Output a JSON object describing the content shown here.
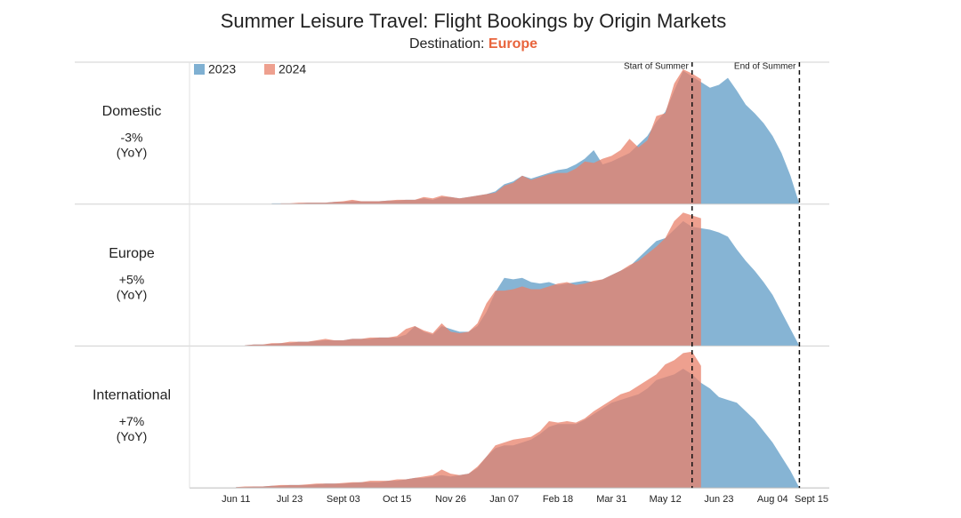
{
  "chart_data": {
    "type": "area",
    "title": "Summer Leisure Travel: Flight Bookings by Origin Markets",
    "subtitle": "Destination: ",
    "subtitle_highlight": "Europe",
    "series": [
      {
        "name": "2023",
        "color": "#7fb0d2"
      },
      {
        "name": "2024",
        "color": "#e8806a"
      }
    ],
    "annotations": [
      "Start of Summer",
      "End of Summer"
    ],
    "ylim": [
      0,
      100
    ],
    "categories": [
      null,
      null,
      null,
      null,
      null,
      "Jun 11",
      null,
      null,
      null,
      null,
      null,
      "Jul 23",
      null,
      null,
      null,
      null,
      null,
      "Sept 03",
      null,
      null,
      null,
      null,
      null,
      "Oct 15",
      null,
      null,
      null,
      null,
      null,
      "Nov 26",
      null,
      null,
      null,
      null,
      null,
      "Jan 07",
      null,
      null,
      null,
      null,
      null,
      "Feb 18",
      null,
      null,
      null,
      null,
      null,
      "Mar 31",
      null,
      null,
      null,
      null,
      null,
      "May 12",
      null,
      null,
      null,
      null,
      null,
      "Jun 23",
      null,
      null,
      null,
      null,
      null,
      "Aug 04",
      null,
      null,
      null,
      null,
      null,
      "Sept 15"
    ],
    "panels": [
      {
        "name": "Domestic",
        "change": "-3%",
        "unit": "(YoY)",
        "values": [
          [
            null,
            null,
            null,
            null,
            null,
            null,
            null,
            null,
            null,
            0.5,
            0.5,
            0.5,
            0.5,
            1,
            1,
            1,
            1.5,
            1.5,
            2,
            2,
            2,
            2,
            2.5,
            2.5,
            3,
            3,
            4,
            3,
            5,
            5,
            4,
            5,
            6,
            7,
            9,
            14,
            16,
            20,
            18,
            20,
            22,
            24,
            25,
            28,
            32,
            38,
            28,
            30,
            33,
            36,
            42,
            48,
            58,
            65,
            80,
            94,
            90,
            86,
            82,
            84,
            89,
            80,
            70,
            64,
            57,
            48,
            36,
            20,
            0,
            null,
            null,
            null
          ],
          [
            null,
            null,
            null,
            null,
            null,
            null,
            null,
            null,
            null,
            null,
            0.5,
            0.5,
            1,
            1,
            1,
            1,
            1.5,
            2,
            3,
            2,
            2,
            2,
            2.5,
            3,
            3,
            3,
            5,
            4,
            6,
            5,
            4,
            5,
            6,
            7,
            8,
            13,
            15,
            20,
            17,
            19,
            21,
            22,
            22,
            25,
            30,
            29,
            32,
            34,
            38,
            46,
            40,
            45,
            62,
            64,
            85,
            95,
            92,
            88,
            null,
            null,
            null,
            null,
            null,
            null,
            null,
            null,
            null,
            null,
            null,
            null,
            null,
            null
          ]
        ]
      },
      {
        "name": "Europe",
        "change": "+5%",
        "unit": "(YoY)",
        "values": [
          [
            null,
            null,
            null,
            null,
            null,
            null,
            0.5,
            1,
            1,
            1.5,
            2,
            2,
            3,
            3,
            3.5,
            4,
            4,
            4,
            5,
            5,
            5,
            6,
            6,
            6,
            8,
            14,
            10,
            8,
            14,
            12,
            10,
            10,
            14,
            24,
            38,
            48,
            47,
            48,
            45,
            44,
            45,
            43,
            44,
            45,
            46,
            45,
            47,
            50,
            53,
            56,
            62,
            68,
            74,
            76,
            82,
            88,
            84,
            83,
            82,
            80,
            77,
            68,
            60,
            53,
            45,
            36,
            24,
            12,
            0,
            null,
            null,
            null
          ],
          [
            null,
            null,
            null,
            null,
            null,
            null,
            0.5,
            1,
            1,
            2,
            2,
            3,
            3,
            3,
            4,
            5,
            4,
            4,
            5,
            5,
            6,
            6,
            6,
            7,
            12,
            14,
            11,
            9,
            16,
            10,
            9,
            10,
            16,
            30,
            39,
            39,
            40,
            42,
            40,
            40,
            42,
            44,
            45,
            43,
            44,
            46,
            47,
            50,
            53,
            57,
            60,
            65,
            70,
            76,
            88,
            94,
            92,
            90,
            null,
            null,
            null,
            null,
            null,
            null,
            null,
            null,
            null,
            null,
            null,
            null,
            null,
            null
          ]
        ]
      },
      {
        "name": "International",
        "change": "+7%",
        "unit": "(YoY)",
        "values": [
          [
            null,
            null,
            null,
            null,
            null,
            0.5,
            0.5,
            1,
            1,
            1.5,
            1.5,
            2,
            2,
            2,
            2.5,
            3,
            3,
            3,
            3.5,
            4,
            4,
            4,
            5,
            5,
            6,
            7,
            7,
            8,
            9,
            8,
            9,
            10,
            14,
            22,
            28,
            30,
            30,
            32,
            34,
            38,
            43,
            45,
            45,
            45,
            48,
            52,
            56,
            60,
            62,
            64,
            66,
            70,
            76,
            78,
            80,
            84,
            80,
            74,
            70,
            64,
            62,
            60,
            54,
            48,
            40,
            32,
            22,
            12,
            0,
            null,
            null,
            null
          ],
          [
            null,
            null,
            null,
            null,
            null,
            0.5,
            1,
            1,
            1,
            1.5,
            2,
            2,
            2,
            2.5,
            3,
            3,
            3,
            3.5,
            4,
            4,
            5,
            5,
            5,
            6,
            6,
            7,
            8,
            9,
            13,
            10,
            9,
            10,
            15,
            22,
            30,
            32,
            34,
            35,
            36,
            40,
            47,
            46,
            47,
            46,
            49,
            54,
            58,
            62,
            66,
            68,
            72,
            76,
            80,
            87,
            90,
            95,
            96,
            86,
            null,
            null,
            null,
            null,
            null,
            null,
            null,
            null,
            null,
            null,
            null,
            null,
            null,
            null
          ]
        ]
      }
    ]
  }
}
